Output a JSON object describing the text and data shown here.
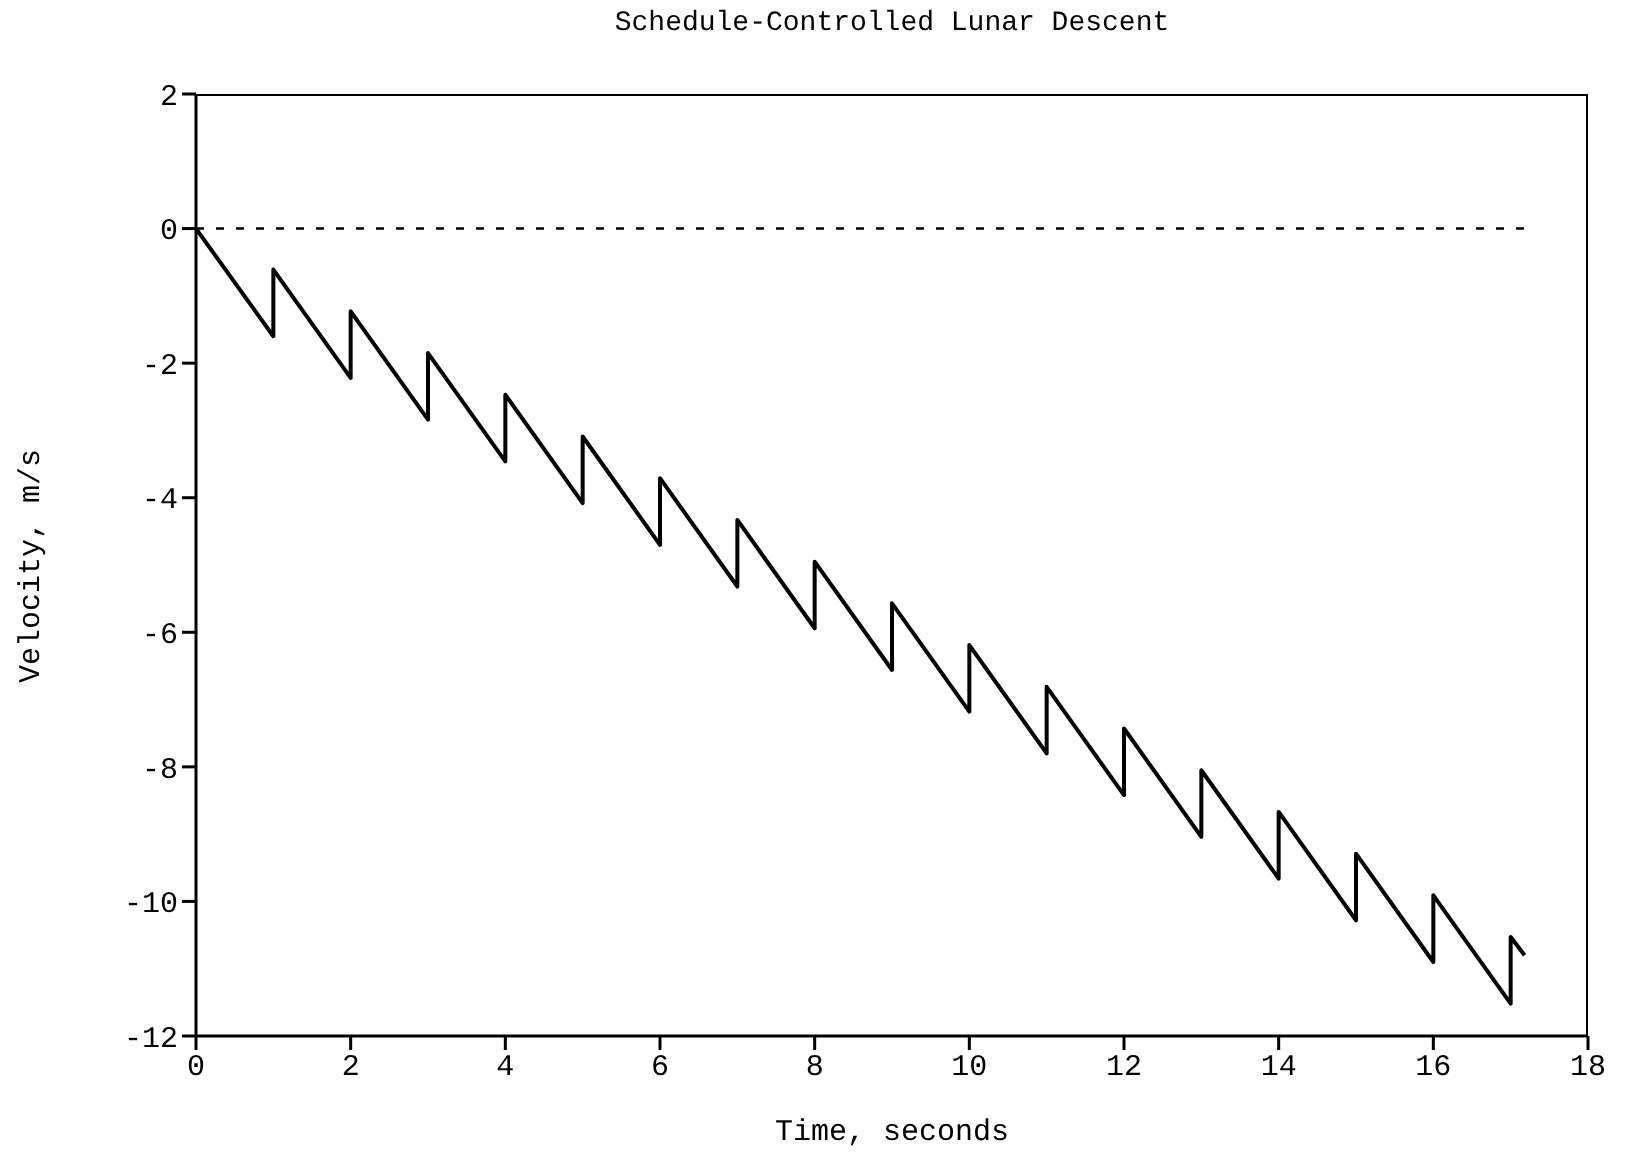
{
  "chart_data": {
    "type": "line",
    "title": "Schedule-Controlled Lunar Descent",
    "xlabel": "Time, seconds",
    "ylabel": "Velocity, m/s",
    "xlim": [
      0,
      18
    ],
    "xticks": [
      0,
      2,
      4,
      6,
      8,
      10,
      12,
      14,
      16,
      18
    ],
    "ylim": [
      -12,
      2
    ],
    "yticks": [
      -12,
      -10,
      -8,
      -6,
      -4,
      -2,
      0,
      2
    ],
    "grid": false,
    "marker": "none",
    "series": [
      {
        "color": "#000000",
        "line_style": "solid",
        "x": [
          0,
          1,
          1,
          2,
          2,
          3,
          3,
          4,
          4,
          5,
          5,
          6,
          6,
          7,
          7,
          8,
          8,
          9,
          9,
          10,
          10,
          11,
          11,
          12,
          12,
          13,
          13,
          14,
          14,
          15,
          15,
          16,
          16,
          17,
          17,
          17.18
        ],
        "values": [
          0,
          -1.6,
          -0.61,
          -2.22,
          -1.23,
          -2.84,
          -1.85,
          -3.46,
          -2.47,
          -4.08,
          -3.09,
          -4.7,
          -3.71,
          -5.32,
          -4.33,
          -5.94,
          -4.95,
          -6.56,
          -5.57,
          -7.18,
          -6.19,
          -7.8,
          -6.81,
          -8.42,
          -7.43,
          -9.04,
          -8.05,
          -9.66,
          -8.67,
          -10.28,
          -9.29,
          -10.9,
          -9.91,
          -11.52,
          -10.53,
          -10.8
        ]
      },
      {
        "color": "#000000",
        "line_style": "dashed",
        "x": [
          0,
          17.2
        ],
        "values": [
          0,
          0
        ]
      }
    ]
  }
}
